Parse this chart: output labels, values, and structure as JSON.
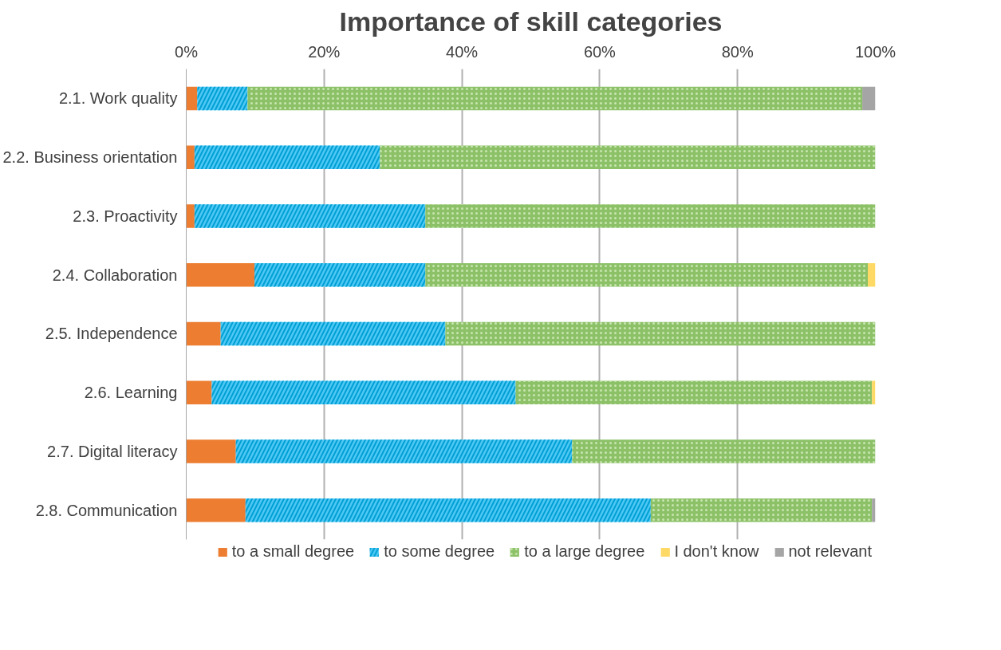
{
  "chart_data": {
    "type": "bar",
    "title": "Importance of skill categories",
    "orientation": "horizontal",
    "stacked": true,
    "categories": [
      "2.1. Work quality",
      "2.2. Business orientation",
      "2.3. Proactivity",
      "2.4. Collaboration",
      "2.5. Independence",
      "2.6. Learning",
      "2.7. Digital literacy",
      "2.8. Communication"
    ],
    "series": [
      {
        "name": "to a small degree",
        "color": "#ed7d31",
        "values": [
          1.6,
          1.2,
          1.2,
          9.9,
          5.0,
          3.7,
          7.2,
          8.6
        ]
      },
      {
        "name": "to some degree",
        "color": "#4fc8f5",
        "values": [
          7.3,
          26.9,
          33.5,
          24.8,
          32.6,
          44.1,
          48.8,
          58.8
        ]
      },
      {
        "name": "to a large degree",
        "color": "#8cc168",
        "values": [
          89.2,
          71.9,
          65.3,
          64.2,
          62.4,
          51.7,
          44.0,
          32.1
        ]
      },
      {
        "name": "I don't know",
        "color": "#ffd966",
        "values": [
          0,
          0,
          0,
          1.1,
          0,
          0.5,
          0,
          0
        ]
      },
      {
        "name": "not relevant",
        "color": "#a5a5a5",
        "values": [
          1.9,
          0,
          0,
          0,
          0,
          0,
          0,
          0.5
        ]
      }
    ],
    "xlim": [
      0,
      100
    ],
    "xticks": [
      {
        "value": 0,
        "label": "0%"
      },
      {
        "value": 20,
        "label": "20%"
      },
      {
        "value": 40,
        "label": "40%"
      },
      {
        "value": 60,
        "label": "60%"
      },
      {
        "value": 80,
        "label": "80%"
      },
      {
        "value": 100,
        "label": "100%"
      }
    ],
    "grid": "x",
    "legend": "bottom"
  }
}
